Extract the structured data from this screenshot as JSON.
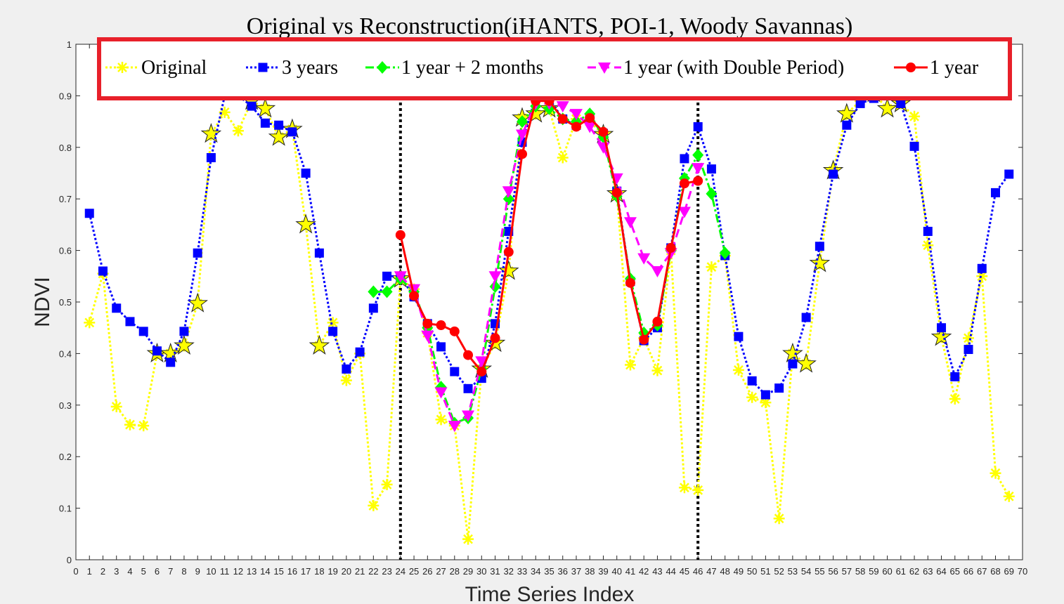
{
  "chart_data": {
    "type": "line",
    "title": "Original vs Reconstruction(iHANTS, POI-1, Woody Savannas)",
    "xlabel": "Time Series Index",
    "ylabel": "NDVI",
    "xlim": [
      0,
      70
    ],
    "ylim": [
      0,
      1
    ],
    "xticks": [
      0,
      1,
      2,
      3,
      4,
      5,
      6,
      7,
      8,
      9,
      10,
      11,
      12,
      13,
      14,
      15,
      16,
      17,
      18,
      19,
      20,
      21,
      22,
      23,
      24,
      25,
      26,
      27,
      28,
      29,
      30,
      31,
      32,
      33,
      34,
      35,
      36,
      37,
      38,
      39,
      40,
      41,
      42,
      43,
      44,
      45,
      46,
      47,
      48,
      49,
      50,
      51,
      52,
      53,
      54,
      55,
      56,
      57,
      58,
      59,
      60,
      61,
      62,
      63,
      64,
      65,
      66,
      67,
      68,
      69,
      70
    ],
    "yticks": [
      0,
      0.1,
      0.2,
      0.3,
      0.4,
      0.5,
      0.6,
      0.7,
      0.8,
      0.9,
      1
    ],
    "ytick_labels": [
      "0",
      "0.1",
      "0.2",
      "0.3",
      "0.4",
      "0.5",
      "0.6",
      "0.7",
      "0.8",
      "0.9",
      "1"
    ],
    "grid": false,
    "legend_position": "top",
    "vertical_markers": [
      24,
      46
    ],
    "series": [
      {
        "name": "Original",
        "color": "#ffff00",
        "marker": "asterisk",
        "line": "dotted",
        "x_start": 1,
        "values": [
          0.46,
          0.555,
          0.297,
          0.262,
          0.26,
          0.4,
          0.4,
          0.415,
          0.497,
          0.826,
          0.868,
          0.832,
          0.89,
          0.875,
          0.82,
          0.835,
          0.65,
          0.415,
          0.46,
          0.348,
          0.4,
          0.105,
          0.146,
          0.545,
          0.525,
          0.44,
          0.272,
          0.26,
          0.04,
          0.37,
          0.42,
          0.56,
          0.857,
          0.865,
          0.875,
          0.78,
          0.855,
          0.85,
          0.825,
          0.71,
          0.378,
          0.43,
          0.367,
          0.6,
          0.14,
          0.135,
          0.568,
          0.59,
          0.368,
          0.315,
          0.305,
          0.08,
          0.4,
          0.38,
          0.575,
          0.755,
          0.865,
          0.89,
          0.905,
          0.875,
          0.885,
          0.86,
          0.61,
          0.432,
          0.312,
          0.43,
          0.55,
          0.168,
          0.123
        ],
        "star_indices": [
          6,
          7,
          8,
          9,
          10,
          13,
          14,
          15,
          16,
          17,
          18,
          24,
          30,
          31,
          32,
          33,
          34,
          35,
          39,
          40,
          53,
          54,
          55,
          56,
          57,
          59,
          60,
          61,
          64
        ]
      },
      {
        "name": "3 years",
        "color": "#0000ff",
        "marker": "square",
        "line": "dotted",
        "x_start": 1,
        "values": [
          0.672,
          0.56,
          0.488,
          0.462,
          0.443,
          0.405,
          0.383,
          0.443,
          0.595,
          0.78,
          0.9,
          0.9,
          0.88,
          0.847,
          0.843,
          0.83,
          0.75,
          0.595,
          0.443,
          0.37,
          0.403,
          0.488,
          0.55,
          0.55,
          0.51,
          0.458,
          0.413,
          0.365,
          0.332,
          0.352,
          0.458,
          0.637,
          0.81,
          0.898,
          0.895,
          0.855,
          0.843,
          0.858,
          0.827,
          0.715,
          0.54,
          0.425,
          0.45,
          0.605,
          0.778,
          0.84,
          0.758,
          0.59,
          0.433,
          0.347,
          0.32,
          0.333,
          0.38,
          0.47,
          0.608,
          0.748,
          0.843,
          0.885,
          0.895,
          0.9,
          0.885,
          0.802,
          0.637,
          0.45,
          0.355,
          0.408,
          0.565,
          0.712,
          0.748
        ]
      },
      {
        "name": "1 year + 2 months",
        "color": "#00ff00",
        "marker": "diamond",
        "line": "dashdot",
        "x_start": 22,
        "values": [
          0.52,
          0.52,
          0.545,
          0.52,
          0.45,
          0.335,
          0.265,
          0.275,
          0.37,
          0.53,
          0.7,
          0.85,
          0.88,
          0.875,
          0.855,
          0.85,
          0.865,
          0.82,
          0.705,
          0.545,
          0.44,
          0.455,
          0.6,
          0.74,
          0.785,
          0.71,
          0.595
        ]
      },
      {
        "name": "1 year (with Double Period)",
        "color": "#ff00ff",
        "marker": "triangle-down",
        "line": "dashed",
        "x_start": 24,
        "values": [
          0.55,
          0.525,
          0.435,
          0.325,
          0.26,
          0.28,
          0.385,
          0.55,
          0.715,
          0.825,
          0.885,
          0.885,
          0.88,
          0.865,
          0.84,
          0.8,
          0.74,
          0.655,
          0.585,
          0.56,
          0.595,
          0.675,
          0.76
        ]
      },
      {
        "name": "1 year",
        "color": "#ff0000",
        "marker": "circle",
        "line": "solid",
        "x_start": 24,
        "values": [
          0.63,
          0.512,
          0.458,
          0.455,
          0.443,
          0.397,
          0.365,
          0.43,
          0.597,
          0.787,
          0.89,
          0.89,
          0.855,
          0.84,
          0.857,
          0.83,
          0.712,
          0.537,
          0.427,
          0.462,
          0.605,
          0.73,
          0.735
        ]
      }
    ]
  },
  "highlight_color": "#e8202a"
}
